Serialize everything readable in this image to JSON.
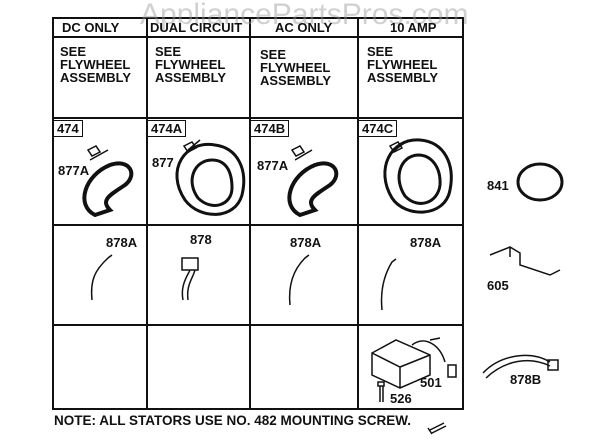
{
  "watermark": "AppliancePartsPros.com",
  "columns": [
    {
      "header": "DC ONLY",
      "note": [
        "SEE",
        "FLYWHEEL",
        "ASSEMBLY"
      ],
      "stator": "474",
      "stator_lead": "877A",
      "wire": "878A"
    },
    {
      "header": "DUAL CIRCUIT",
      "note": [
        "SEE",
        "FLYWHEEL",
        "ASSEMBLY"
      ],
      "stator": "474A",
      "stator_lead": "877",
      "wire": "878"
    },
    {
      "header": "AC ONLY",
      "note": [
        "SEE",
        "FLYWHEEL",
        "ASSEMBLY"
      ],
      "stator": "474B",
      "stator_lead": "877A",
      "wire": "878A"
    },
    {
      "header": "10 AMP",
      "note": [
        "SEE",
        "FLYWHEEL",
        "ASSEMBLY"
      ],
      "stator": "474C",
      "wire": "878A",
      "regulator": "501",
      "regulator_screw": "526"
    }
  ],
  "side_parts": {
    "clamp": "841",
    "bracket": "605",
    "harness": "878B"
  },
  "note": "NOTE: ALL STATORS USE NO. 482 MOUNTING SCREW."
}
